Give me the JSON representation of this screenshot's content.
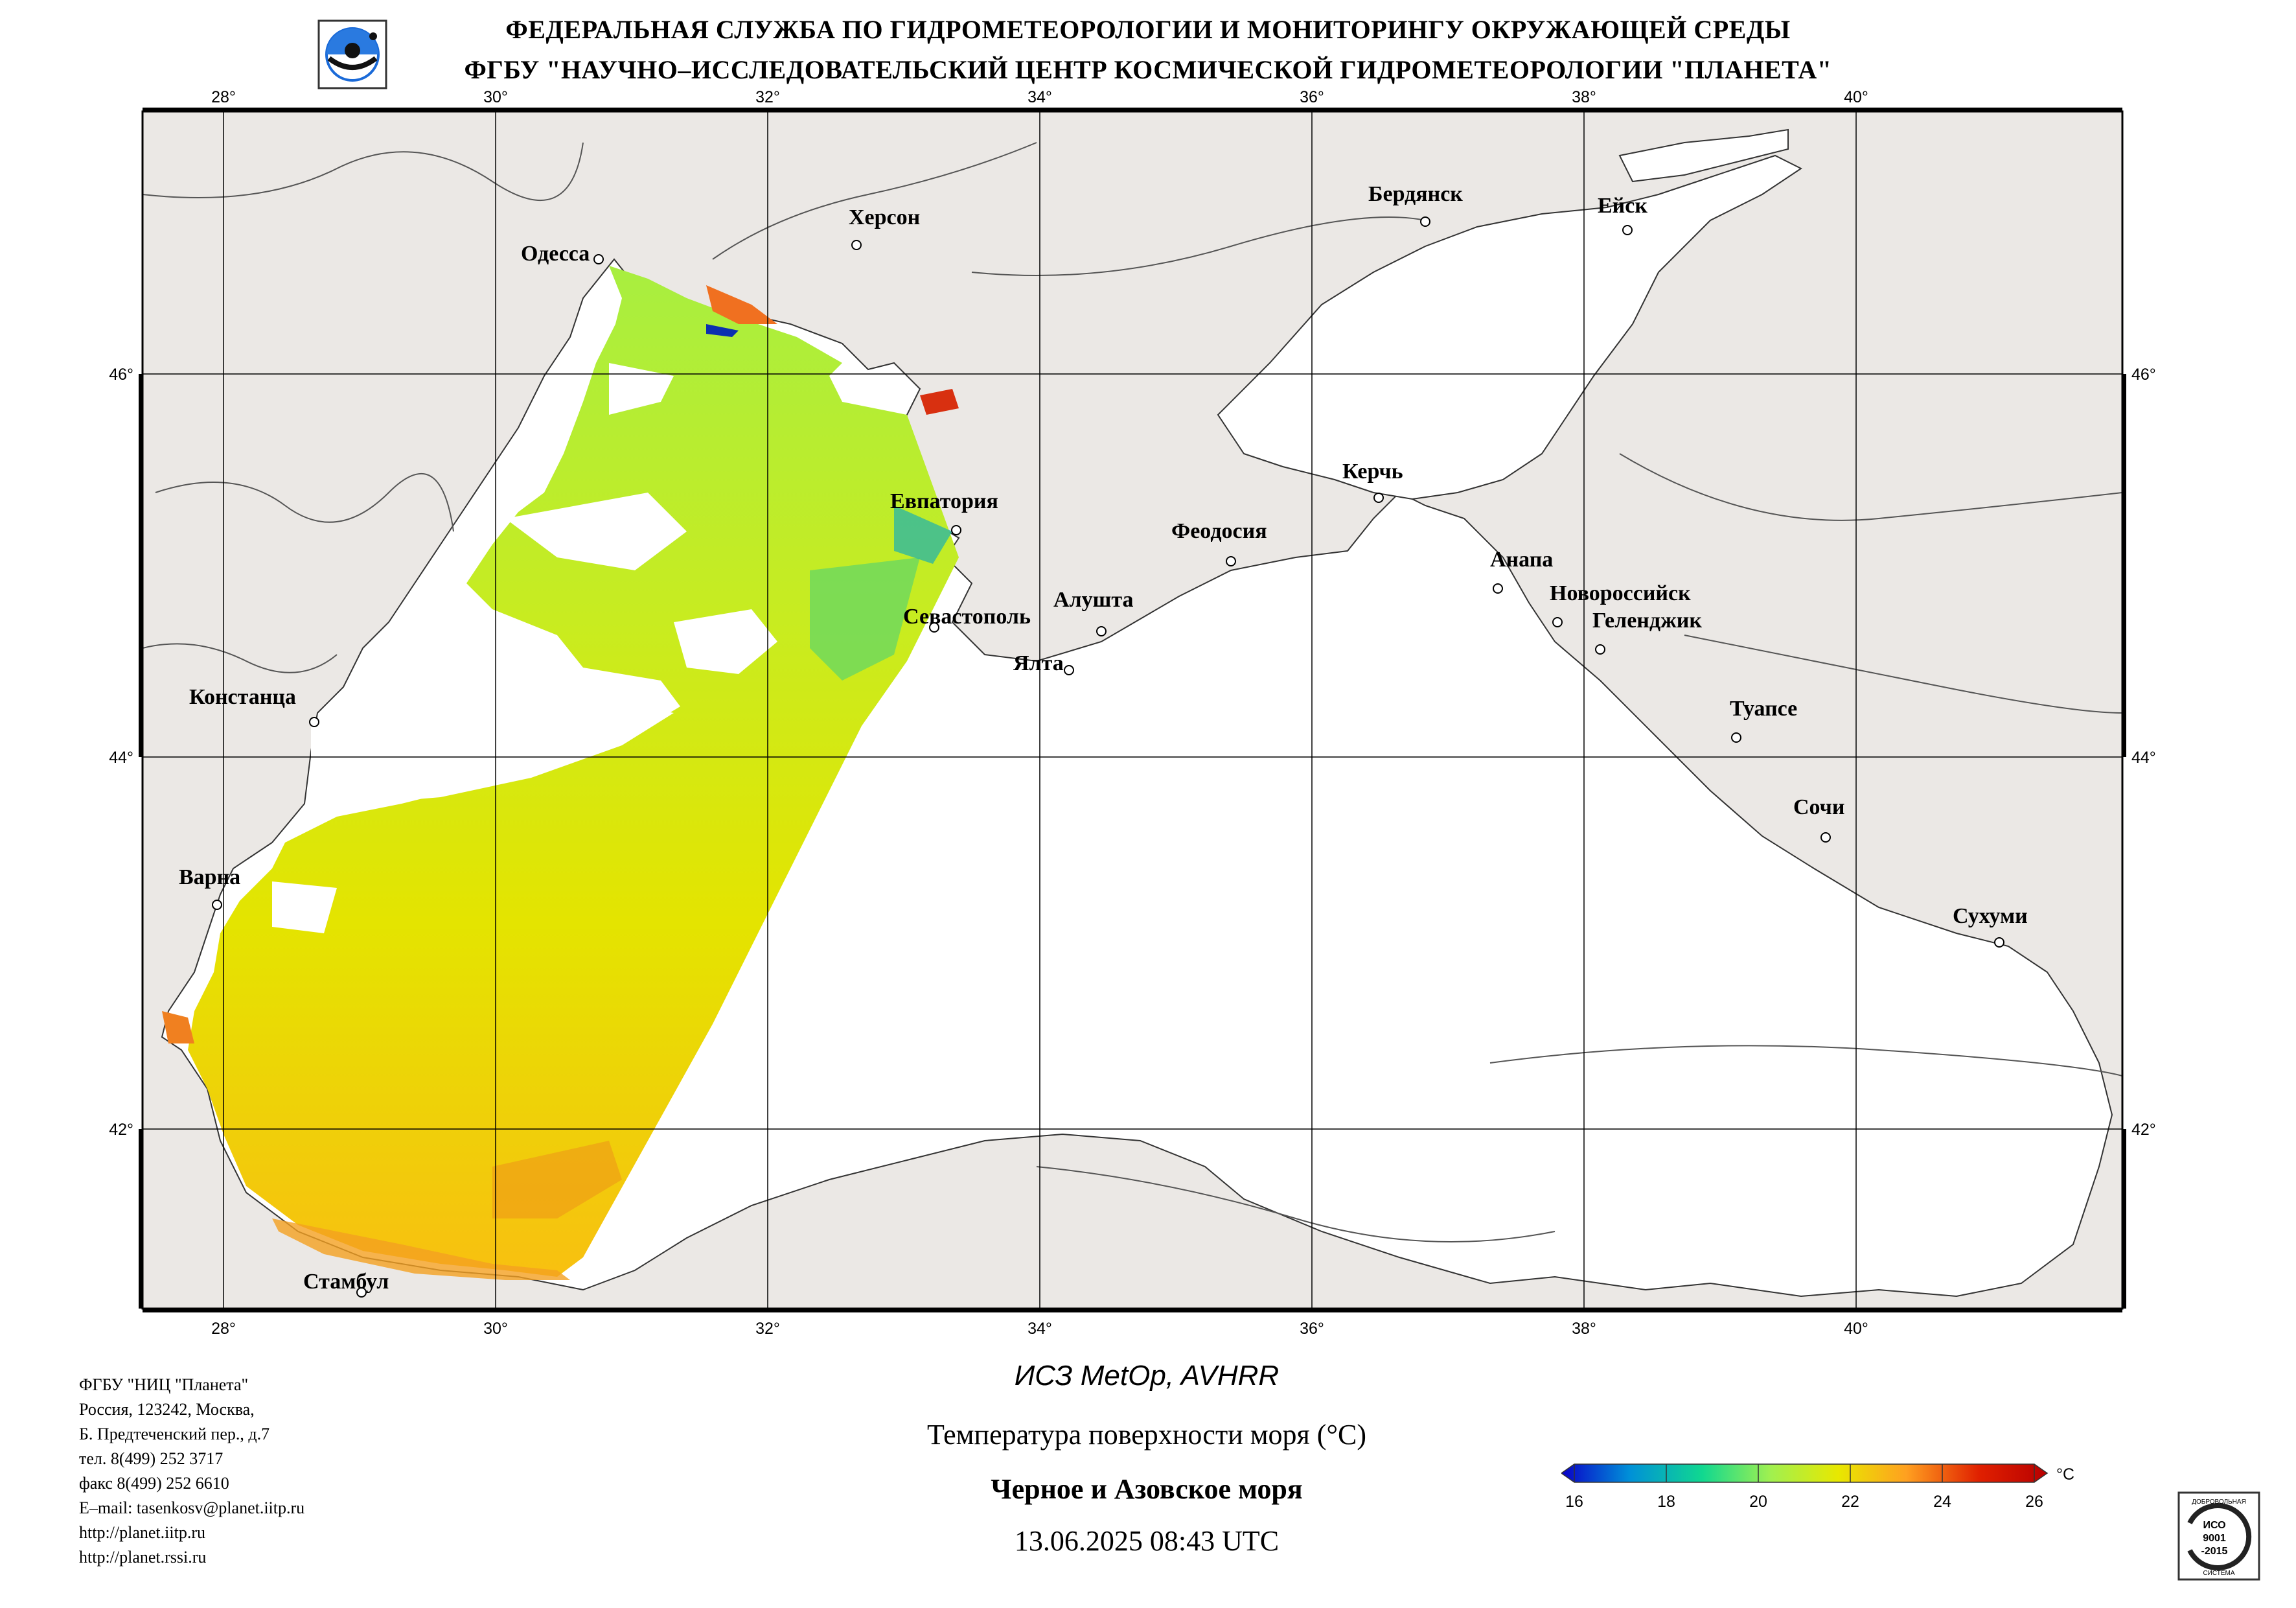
{
  "header": {
    "line1": "ФЕДЕРАЛЬНАЯ СЛУЖБА ПО ГИДРОМЕТЕОРОЛОГИИ И МОНИТОРИНГУ ОКРУЖАЮЩЕЙ СРЕДЫ",
    "line2": "ФГБУ \"НАУЧНО–ИССЛЕДОВАТЕЛЬСКИЙ ЦЕНТР КОСМИЧЕСКОЙ ГИДРОМЕТЕОРОЛОГИИ \"ПЛАНЕТА\""
  },
  "logo_icon": "planeta-globe-logo",
  "map": {
    "lon_ticks": [
      "28°",
      "30°",
      "32°",
      "34°",
      "36°",
      "38°",
      "40°"
    ],
    "lat_ticks": [
      "46°",
      "44°",
      "42°"
    ],
    "cities": [
      {
        "name": "Херсон",
        "lon": 32.6,
        "lat": 46.64
      },
      {
        "name": "Одесса",
        "lon": 30.73,
        "lat": 46.48
      },
      {
        "name": "Бердянск",
        "lon": 36.78,
        "lat": 46.76
      },
      {
        "name": "Ейск",
        "lon": 38.27,
        "lat": 46.71
      },
      {
        "name": "Керчь",
        "lon": 36.47,
        "lat": 45.36
      },
      {
        "name": "Евпатория",
        "lon": 33.37,
        "lat": 45.2
      },
      {
        "name": "Феодосия",
        "lon": 35.38,
        "lat": 45.03
      },
      {
        "name": "Анапа",
        "lon": 37.32,
        "lat": 44.89
      },
      {
        "name": "Новороссийск",
        "lon": 37.77,
        "lat": 44.72
      },
      {
        "name": "Геленджик",
        "lon": 38.08,
        "lat": 44.56
      },
      {
        "name": "Севастополь",
        "lon": 33.52,
        "lat": 44.6
      },
      {
        "name": "Алушта",
        "lon": 34.41,
        "lat": 44.67
      },
      {
        "name": "Ялта",
        "lon": 34.17,
        "lat": 44.5
      },
      {
        "name": "Констанца",
        "lon": 28.63,
        "lat": 44.17
      },
      {
        "name": "Туапсе",
        "lon": 39.07,
        "lat": 44.1
      },
      {
        "name": "Сочи",
        "lon": 39.73,
        "lat": 43.6
      },
      {
        "name": "Варна",
        "lon": 27.91,
        "lat": 43.21
      },
      {
        "name": "Сухуми",
        "lon": 41.02,
        "lat": 43.0
      },
      {
        "name": "Стамбул",
        "lon": 28.98,
        "lat": 41.01
      }
    ],
    "colors": {
      "land": "#ebe8e5",
      "sea": "#ffffff",
      "grid": "#000000",
      "border": "#000000"
    }
  },
  "footer": {
    "org_lines": [
      "ФГБУ \"НИЦ \"Планета\"",
      "Россия, 123242, Москва,",
      "Б. Предтеченский пер., д.7",
      "тел. 8(499) 252 3717",
      "факс 8(499) 252 6610",
      "E–mail: tasenkosv@planet.iitp.ru",
      "http://planet.iitp.ru",
      "http://planet.rssi.ru"
    ],
    "satellite": "ИСЗ MetOp, AVHRR",
    "parameter": "Температура поверхности моря (°C)",
    "region": "Черное и Азовское моря",
    "datetime": "13.06.2025 08:43 UTC"
  },
  "colorbar": {
    "ticks": [
      "16",
      "18",
      "20",
      "22",
      "24",
      "26"
    ],
    "unit": "°C",
    "colors": [
      "#0a00c8",
      "#0090d8",
      "#10d890",
      "#a0f050",
      "#e8e800",
      "#ffa020",
      "#e02000",
      "#b80000"
    ]
  },
  "iso_badge": {
    "top_text": "ДОБРОВОЛЬНАЯ",
    "line1": "ИСО",
    "line2": "9001",
    "line3": "-2015",
    "bottom_text": "СИСТЕМА"
  }
}
